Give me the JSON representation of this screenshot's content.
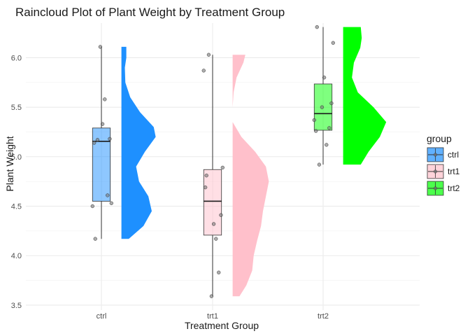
{
  "chart_data": {
    "type": "raincloud",
    "title": "Raincloud Plot of Plant Weight by Treatment Group",
    "xlabel": "Treatment Group",
    "ylabel": "Plant Weight",
    "ylim": [
      3.45,
      6.35
    ],
    "yticks": [
      3.5,
      4.0,
      4.5,
      5.0,
      5.5,
      6.0
    ],
    "ytick_labels": [
      "3.5",
      "4.0",
      "4.5",
      "5.0",
      "5.5",
      "6.0"
    ],
    "categories": [
      "ctrl",
      "trt1",
      "trt2"
    ],
    "grid": true,
    "legend": {
      "title": "group",
      "position": "right",
      "entries": [
        "ctrl",
        "trt1",
        "trt2"
      ]
    },
    "colors": {
      "ctrl": "#1E90FF",
      "trt1": "#FFC0CB",
      "trt2": "#00FF00"
    },
    "groups": [
      {
        "name": "ctrl",
        "points": [
          4.17,
          5.58,
          5.18,
          6.11,
          4.5,
          4.61,
          5.17,
          4.53,
          5.33,
          5.14
        ],
        "box": {
          "min": 4.17,
          "q1": 4.55,
          "median": 5.155,
          "q3": 5.29,
          "max": 6.11
        },
        "density": [
          [
            4.17,
            0.15
          ],
          [
            4.3,
            0.45
          ],
          [
            4.45,
            0.62
          ],
          [
            4.6,
            0.55
          ],
          [
            4.75,
            0.36
          ],
          [
            4.9,
            0.3
          ],
          [
            5.05,
            0.48
          ],
          [
            5.2,
            0.7
          ],
          [
            5.3,
            0.66
          ],
          [
            5.45,
            0.38
          ],
          [
            5.6,
            0.18
          ],
          [
            5.75,
            0.08
          ],
          [
            5.9,
            0.07
          ],
          [
            6.0,
            0.1
          ],
          [
            6.11,
            0.1
          ]
        ]
      },
      {
        "name": "trt1",
        "points": [
          4.81,
          4.17,
          4.41,
          3.59,
          5.87,
          3.83,
          6.03,
          4.89,
          4.32,
          4.69
        ],
        "box": {
          "min": 3.59,
          "q1": 4.2075,
          "median": 4.55,
          "q3": 4.87,
          "max": 6.03
        },
        "density": [
          [
            3.59,
            0.14
          ],
          [
            3.7,
            0.28
          ],
          [
            3.85,
            0.4
          ],
          [
            4.0,
            0.43
          ],
          [
            4.15,
            0.5
          ],
          [
            4.3,
            0.58
          ],
          [
            4.45,
            0.62
          ],
          [
            4.6,
            0.68
          ],
          [
            4.75,
            0.74
          ],
          [
            4.9,
            0.68
          ],
          [
            5.05,
            0.46
          ],
          [
            5.2,
            0.18
          ],
          [
            5.35,
            0.0
          ],
          [
            5.5,
            0.0
          ],
          [
            5.65,
            0.02
          ],
          [
            5.8,
            0.08
          ],
          [
            5.95,
            0.22
          ],
          [
            6.03,
            0.26
          ]
        ]
      },
      {
        "name": "trt2",
        "points": [
          6.31,
          5.12,
          5.54,
          5.5,
          5.37,
          5.29,
          4.92,
          6.15,
          5.8,
          5.26
        ],
        "box": {
          "min": 4.92,
          "q1": 5.2675,
          "median": 5.435,
          "q3": 5.735,
          "max": 6.31
        },
        "density": [
          [
            4.92,
            0.36
          ],
          [
            5.05,
            0.52
          ],
          [
            5.2,
            0.75
          ],
          [
            5.35,
            0.88
          ],
          [
            5.5,
            0.62
          ],
          [
            5.65,
            0.3
          ],
          [
            5.8,
            0.18
          ],
          [
            5.95,
            0.22
          ],
          [
            6.1,
            0.35
          ],
          [
            6.2,
            0.38
          ],
          [
            6.31,
            0.36
          ]
        ]
      }
    ]
  }
}
